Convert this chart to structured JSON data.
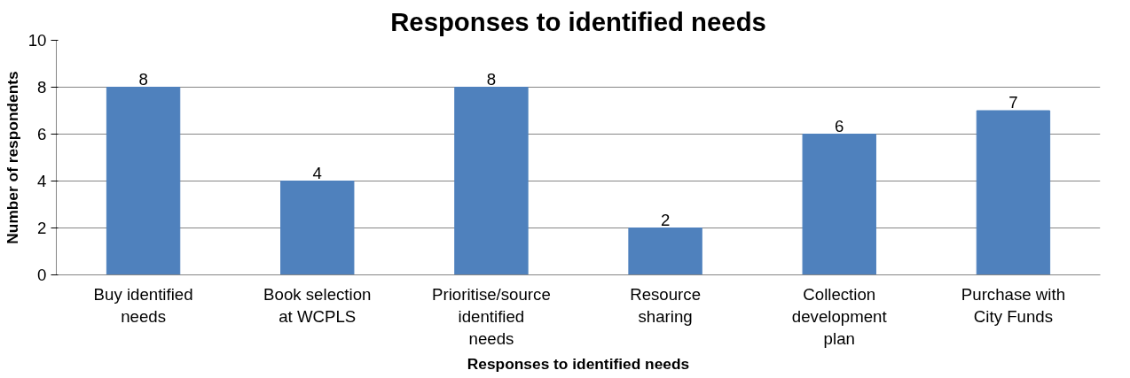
{
  "chart_data": {
    "type": "bar",
    "title": "Responses to identified needs",
    "xlabel": "Responses to identified needs",
    "ylabel": "Number of respondents",
    "categories": [
      "Buy identified needs",
      "Book selection at WCPLS",
      "Prioritise/source identified needs",
      "Resource sharing",
      "Collection development plan",
      "Purchase with City Funds"
    ],
    "values": [
      8,
      4,
      8,
      2,
      6,
      7
    ],
    "color": "#4f81bd",
    "ylim": [
      0,
      10
    ],
    "yticks": [
      0,
      2,
      4,
      6,
      8,
      10
    ],
    "grid": "y",
    "data_labels": true
  }
}
